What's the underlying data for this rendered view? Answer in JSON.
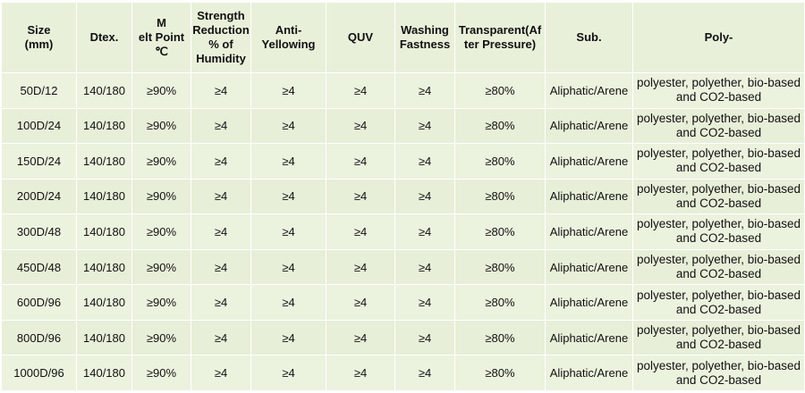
{
  "table": {
    "headers": [
      "Size\n(mm)",
      "Dtex.",
      "M\nelt Point\n℃",
      "Strength\nReduction\n% of\nHumidity",
      "Anti-\nYellowing",
      "QUV",
      "Washing\nFastness",
      "Transparent(Af\nter Pressure)",
      "Sub.",
      "Poly-"
    ],
    "rows": [
      [
        "50D/12",
        "140/180",
        "≥90%",
        "≥4",
        "≥4",
        "≥4",
        "≥4",
        "≥80%",
        "Aliphatic/Arene",
        "polyester, polyether, bio-based and CO2-based"
      ],
      [
        "100D/24",
        "140/180",
        "≥90%",
        "≥4",
        "≥4",
        "≥4",
        "≥4",
        "≥80%",
        "Aliphatic/Arene",
        "polyester, polyether, bio-based and CO2-based"
      ],
      [
        "150D/24",
        "140/180",
        "≥90%",
        "≥4",
        "≥4",
        "≥4",
        "≥4",
        "≥80%",
        "Aliphatic/Arene",
        "polyester, polyether, bio-based and CO2-based"
      ],
      [
        "200D/24",
        "140/180",
        "≥90%",
        "≥4",
        "≥4",
        "≥4",
        "≥4",
        "≥80%",
        "Aliphatic/Arene",
        "polyester, polyether, bio-based and CO2-based"
      ],
      [
        "300D/48",
        "140/180",
        "≥90%",
        "≥4",
        "≥4",
        "≥4",
        "≥4",
        "≥80%",
        "Aliphatic/Arene",
        "polyester, polyether, bio-based and CO2-based"
      ],
      [
        "450D/48",
        "140/180",
        "≥90%",
        "≥4",
        "≥4",
        "≥4",
        "≥4",
        "≥80%",
        "Aliphatic/Arene",
        "polyester, polyether, bio-based and CO2-based"
      ],
      [
        "600D/96",
        "140/180",
        "≥90%",
        "≥4",
        "≥4",
        "≥4",
        "≥4",
        "≥80%",
        "Aliphatic/Arene",
        "polyester, polyether, bio-based and CO2-based"
      ],
      [
        "800D/96",
        "140/180",
        "≥90%",
        "≥4",
        "≥4",
        "≥4",
        "≥4",
        "≥80%",
        "Aliphatic/Arene",
        "polyester, polyether, bio-based and CO2-based"
      ],
      [
        "1000D/96",
        "140/180",
        "≥90%",
        "≥4",
        "≥4",
        "≥4",
        "≥4",
        "≥80%",
        "Aliphatic/Arene",
        "polyester, polyether, bio-based and CO2-based"
      ]
    ]
  },
  "colors": {
    "cell_background": "#eaf1dd",
    "border": "#ffffff",
    "text": "#111111"
  }
}
